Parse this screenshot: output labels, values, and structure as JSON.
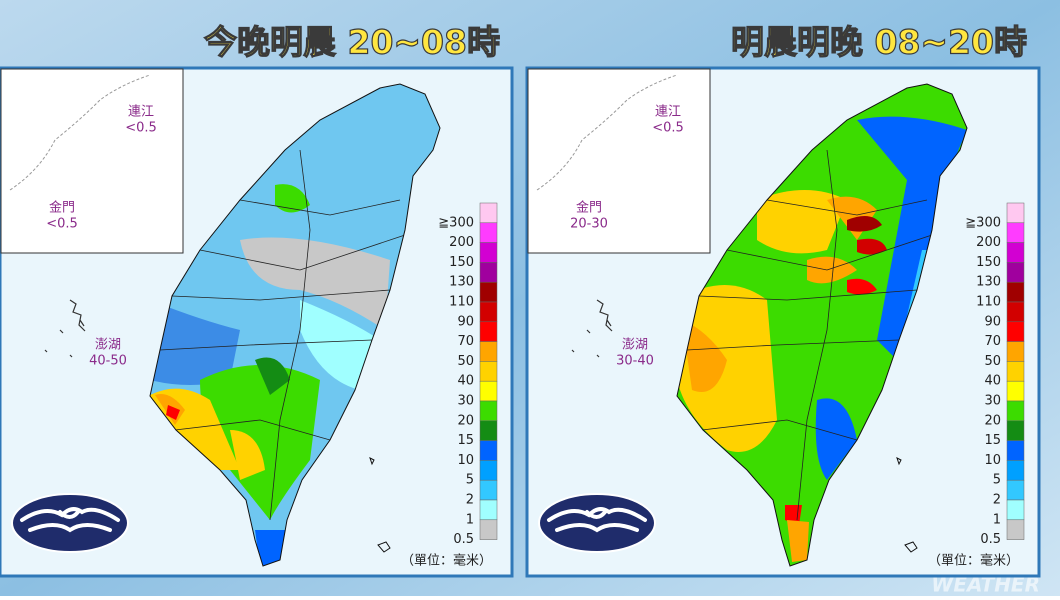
{
  "panels": [
    {
      "title": "今晚明晨 20~08時",
      "insets": [
        {
          "name": "連江",
          "value": "<0.5"
        },
        {
          "name": "金門",
          "value": "<0.5"
        },
        {
          "name": "澎湖",
          "value": "40-50"
        }
      ],
      "unit": "（單位：毫米）"
    },
    {
      "title": "明晨明晚 08~20時",
      "insets": [
        {
          "name": "連江",
          "value": "<0.5"
        },
        {
          "name": "金門",
          "value": "20-30"
        },
        {
          "name": "澎湖",
          "value": "30-40"
        }
      ],
      "unit": "（單位：毫米）"
    }
  ],
  "legend": {
    "labels": [
      "≧300",
      "200",
      "150",
      "130",
      "110",
      "90",
      "70",
      "50",
      "40",
      "30",
      "20",
      "15",
      "10",
      "5",
      "2",
      "1",
      "0.5"
    ],
    "colors": [
      "#ffc8f0",
      "#ff3cff",
      "#d200d2",
      "#a0009e",
      "#a00000",
      "#d20000",
      "#ff0000",
      "#ffa500",
      "#ffd200",
      "#ffff00",
      "#3cdc00",
      "#148c14",
      "#0064ff",
      "#00a0ff",
      "#32c8ff",
      "#a0ffff",
      "#c8c8c8"
    ]
  },
  "watermark": "WEATHER"
}
